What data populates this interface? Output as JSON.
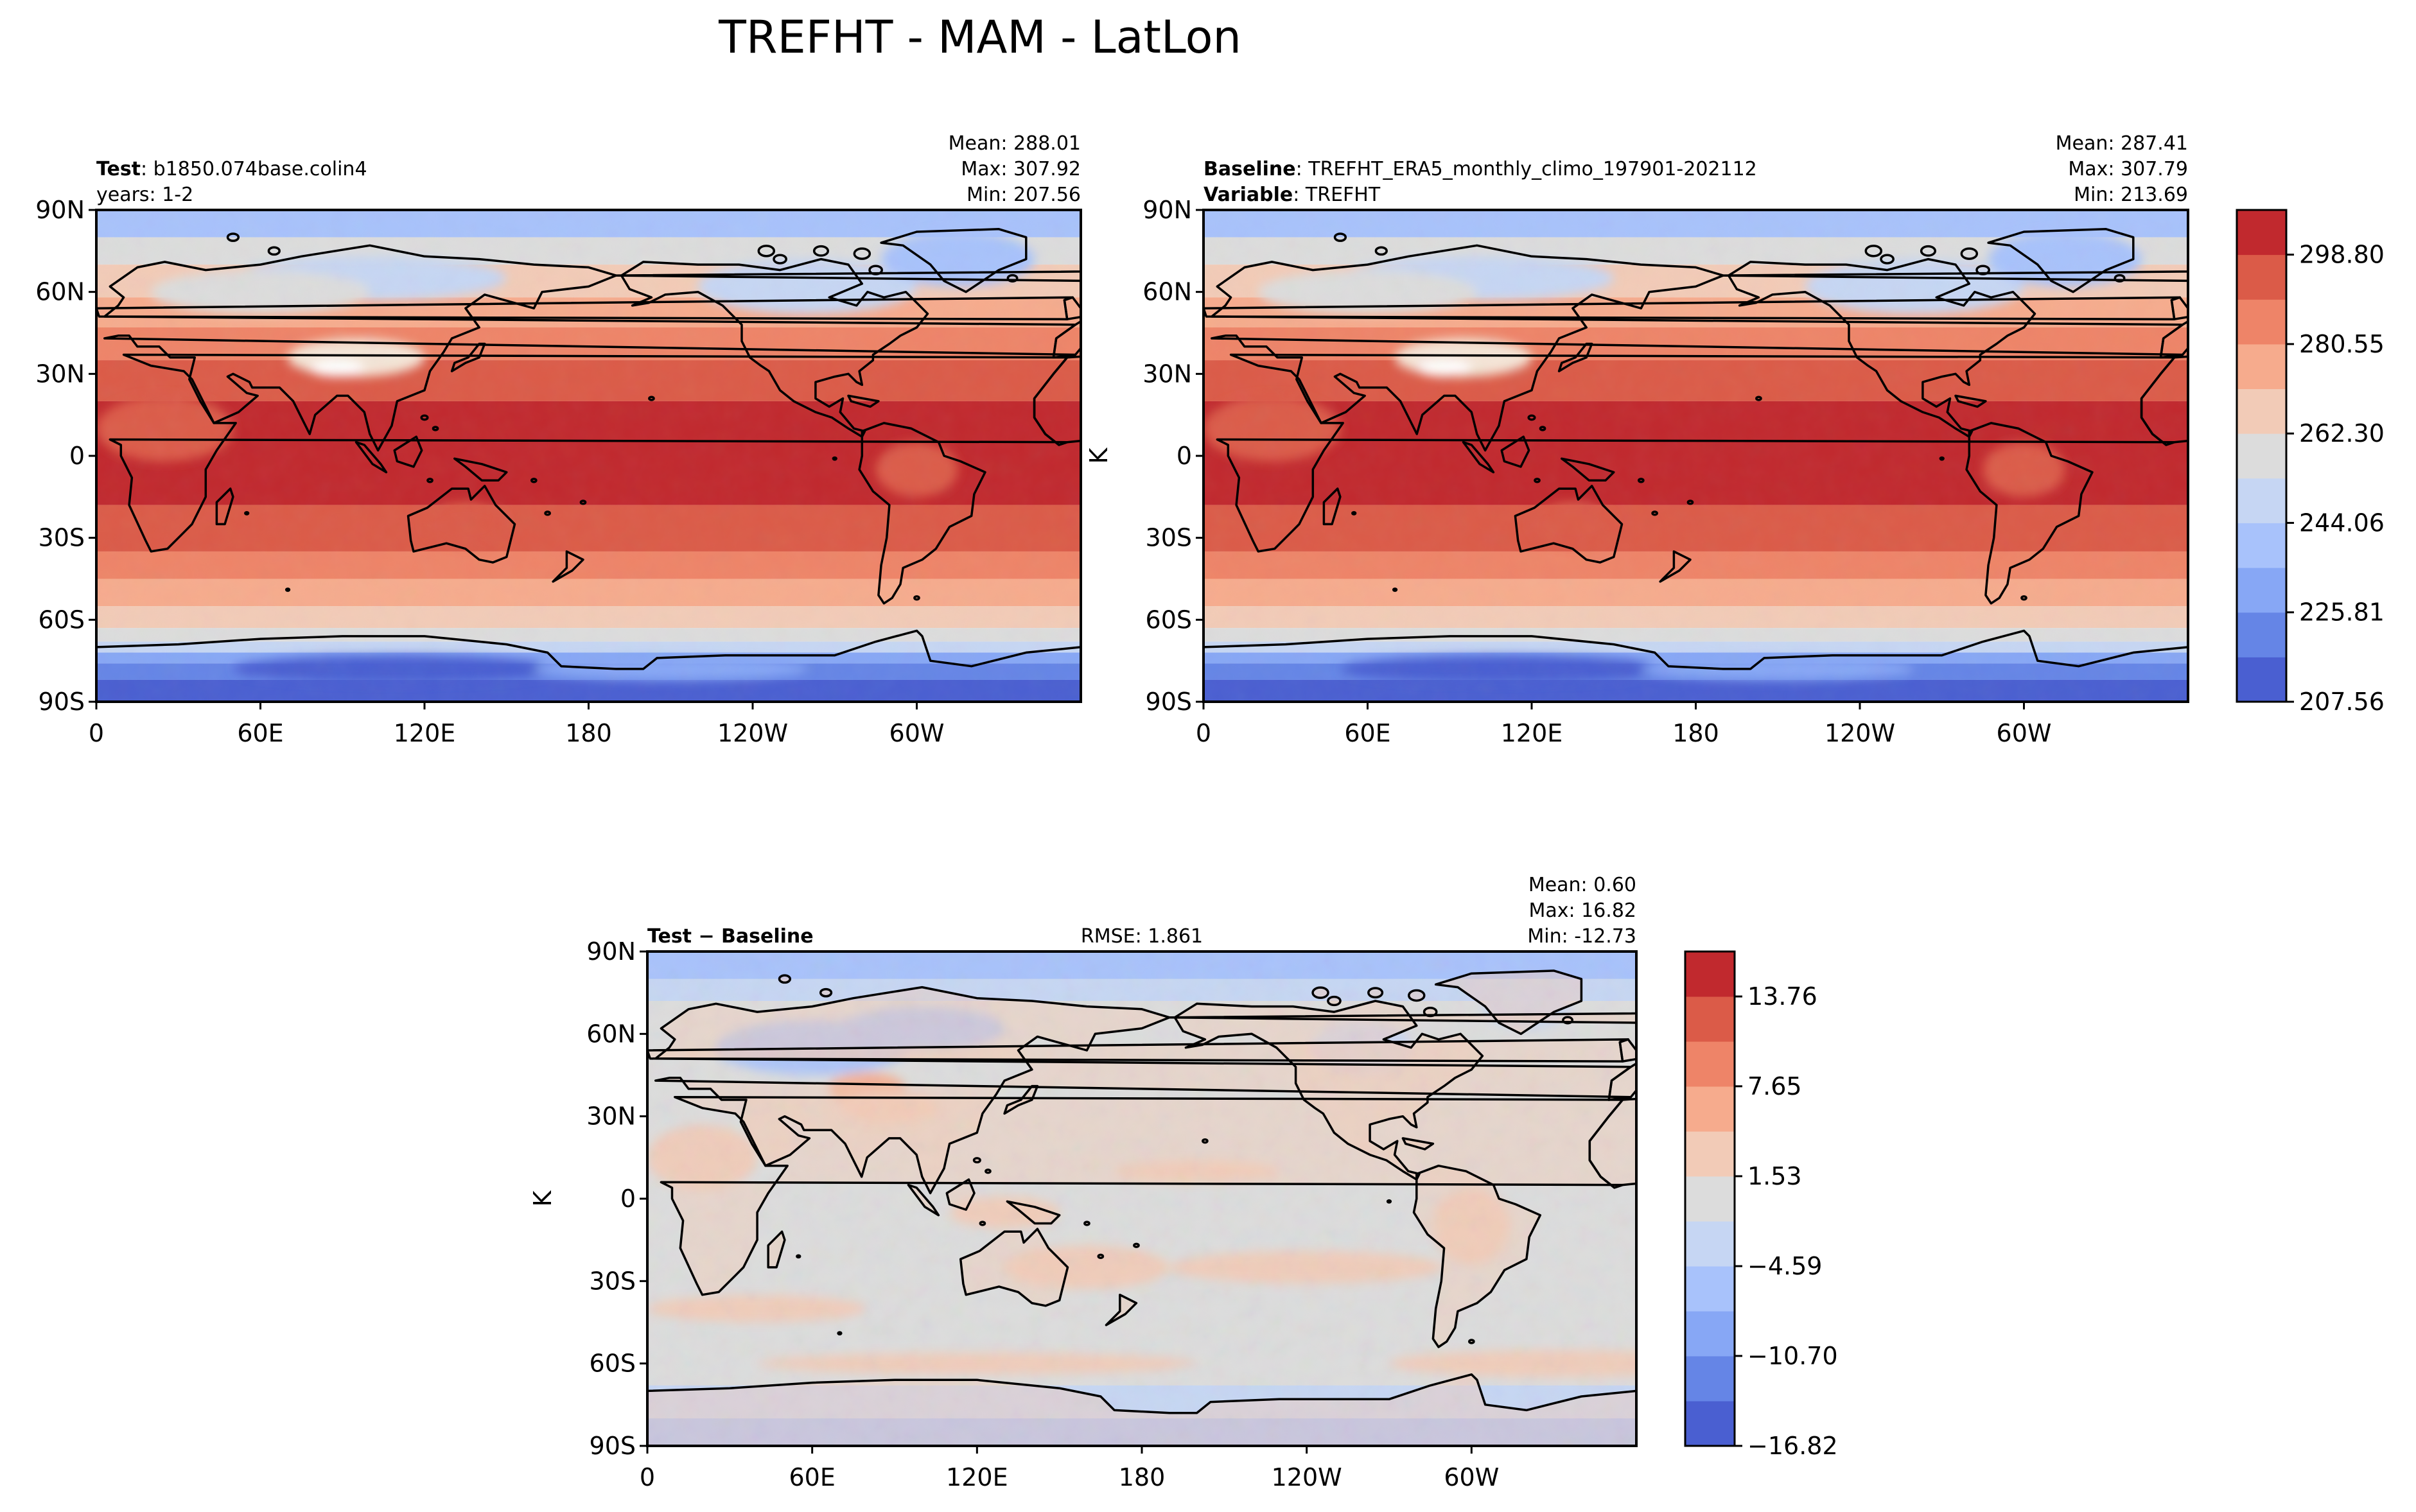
{
  "figure": {
    "title": "TREFHT - MAM - LatLon"
  },
  "panels": [
    {
      "id": "test",
      "left_lines": [
        {
          "bold": "Test",
          "text": ": b1850.074base.colin4"
        },
        {
          "bold": "",
          "text": "years: 1-2"
        }
      ],
      "center": "",
      "stats": [
        "Mean: 288.01",
        "Max: 307.92",
        "Min: 207.56"
      ],
      "ylabel": "",
      "has_colorbar": false
    },
    {
      "id": "baseline",
      "left_lines": [
        {
          "bold": "Baseline",
          "text": ": TREFHT_ERA5_monthly_climo_197901-202112"
        },
        {
          "bold": "Variable",
          "text": ": TREFHT"
        }
      ],
      "center": "",
      "stats": [
        "Mean: 287.41",
        "Max: 307.79",
        "Min: 213.69"
      ],
      "ylabel": "K",
      "has_colorbar": true
    },
    {
      "id": "diff",
      "left_lines": [
        {
          "bold": "Test − Baseline",
          "text": ""
        }
      ],
      "center": "RMSE: 1.861",
      "stats": [
        "Mean:  0.60",
        "Max: 16.82",
        "Min: -12.73"
      ],
      "ylabel": "K",
      "has_colorbar": true
    }
  ],
  "axis": {
    "xticks": [
      {
        "lon": 0,
        "label": "0"
      },
      {
        "lon": 60,
        "label": "60E"
      },
      {
        "lon": 120,
        "label": "120E"
      },
      {
        "lon": 180,
        "label": "180"
      },
      {
        "lon": 240,
        "label": "120W"
      },
      {
        "lon": 300,
        "label": "60W"
      }
    ],
    "yticks": [
      {
        "lat": 90,
        "label": "90N"
      },
      {
        "lat": 60,
        "label": "60N"
      },
      {
        "lat": 30,
        "label": "30N"
      },
      {
        "lat": 0,
        "label": "0"
      },
      {
        "lat": -30,
        "label": "30S"
      },
      {
        "lat": -60,
        "label": "60S"
      },
      {
        "lat": -90,
        "label": "90S"
      }
    ],
    "xlim": [
      0,
      360
    ],
    "ylim": [
      -90,
      90
    ]
  },
  "chart_data": [
    {
      "type": "heatmap",
      "title": "TREFHT",
      "projection": "PlateCarree",
      "variable_units": "K",
      "panels": [
        "Test",
        "Baseline"
      ],
      "colorbar": {
        "min": 207.56,
        "max": 307.92,
        "ticks": [
          207.56,
          225.81,
          244.06,
          262.3,
          280.55,
          298.8
        ],
        "tick_labels": [
          "207.56",
          "225.81",
          "244.06",
          "262.30",
          "280.55",
          "298.80"
        ],
        "levels": 11,
        "colors": [
          "#4a5fd1",
          "#6585e6",
          "#87a7f5",
          "#a8c2fb",
          "#c6d6f3",
          "#dcdcdc",
          "#f2cbb7",
          "#f6ab8d",
          "#ee8468",
          "#db5b48",
          "#c1292e"
        ]
      },
      "lat_band_means_test": [
        {
          "lat": 75,
          "value": 255
        },
        {
          "lat": 45,
          "value": 278
        },
        {
          "lat": 15,
          "value": 297
        },
        {
          "lat": -15,
          "value": 298
        },
        {
          "lat": -45,
          "value": 282
        },
        {
          "lat": -75,
          "value": 235
        }
      ]
    },
    {
      "type": "heatmap",
      "title": "Test − Baseline",
      "projection": "PlateCarree",
      "variable_units": "K",
      "colorbar": {
        "min": -16.82,
        "max": 16.82,
        "ticks": [
          -16.82,
          -10.7,
          -4.59,
          1.53,
          7.65,
          13.76
        ],
        "tick_labels": [
          "−16.82",
          "−10.70",
          "−4.59",
          "1.53",
          "7.65",
          "13.76"
        ],
        "levels": 11,
        "colors": [
          "#4a5fd1",
          "#6585e6",
          "#87a7f5",
          "#a8c2fb",
          "#c6d6f3",
          "#dcdcdc",
          "#f2cbb7",
          "#f6ab8d",
          "#ee8468",
          "#db5b48",
          "#c1292e"
        ]
      },
      "rmse": 1.861
    }
  ]
}
